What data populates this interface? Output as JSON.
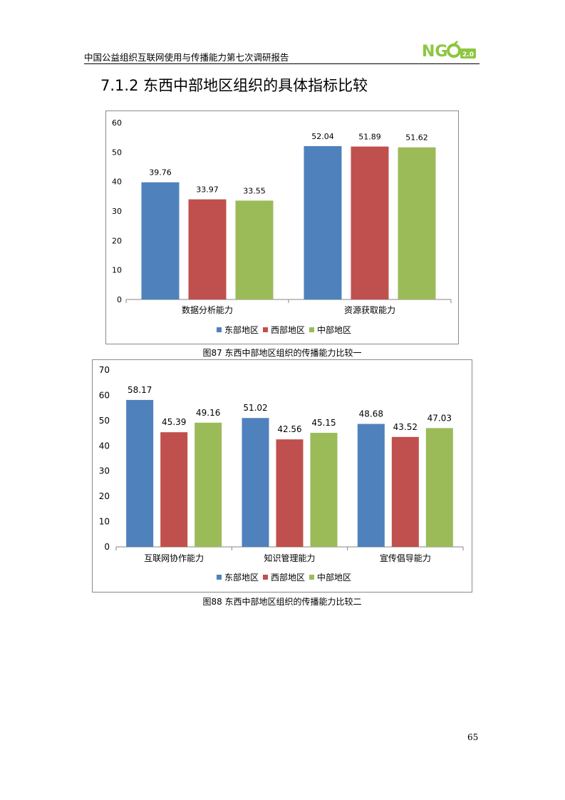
{
  "header": {
    "title": "中国公益组织互联网使用与传播能力第七次调研报告",
    "logo_text": "NG",
    "logo_badge": "2.0",
    "logo_color": "#8dc63f"
  },
  "section": {
    "title": "7.1.2 东西中部地区组织的具体指标比较"
  },
  "colors": {
    "east": "#4f81bd",
    "west": "#c0504d",
    "central": "#9bbb59"
  },
  "chart_data": [
    {
      "type": "bar",
      "categories": [
        "数据分析能力",
        "资源获取能力"
      ],
      "series": [
        {
          "name": "东部地区",
          "values": [
            39.76,
            52.04
          ]
        },
        {
          "name": "西部地区",
          "values": [
            33.97,
            51.89
          ]
        },
        {
          "name": "中部地区",
          "values": [
            33.55,
            51.62
          ]
        }
      ],
      "ylim": [
        0,
        60
      ],
      "yticks": [
        0,
        10,
        20,
        30,
        40,
        50,
        60
      ],
      "legend": "bottom",
      "grid": false
    },
    {
      "type": "bar",
      "categories": [
        "互联网协作能力",
        "知识管理能力",
        "宣传倡导能力"
      ],
      "series": [
        {
          "name": "东部地区",
          "values": [
            58.17,
            51.02,
            48.68
          ]
        },
        {
          "name": "西部地区",
          "values": [
            45.39,
            42.56,
            43.52
          ]
        },
        {
          "name": "中部地区",
          "values": [
            49.16,
            45.15,
            47.03
          ]
        }
      ],
      "ylim": [
        0,
        70
      ],
      "yticks": [
        0,
        10,
        20,
        30,
        40,
        50,
        60,
        70
      ],
      "legend": "bottom",
      "grid": false
    }
  ],
  "captions": {
    "fig87": "图87 东西中部地区组织的传播能力比较一",
    "fig88": "图88 东西中部地区组织的传播能力比较二"
  },
  "page_number": "65"
}
